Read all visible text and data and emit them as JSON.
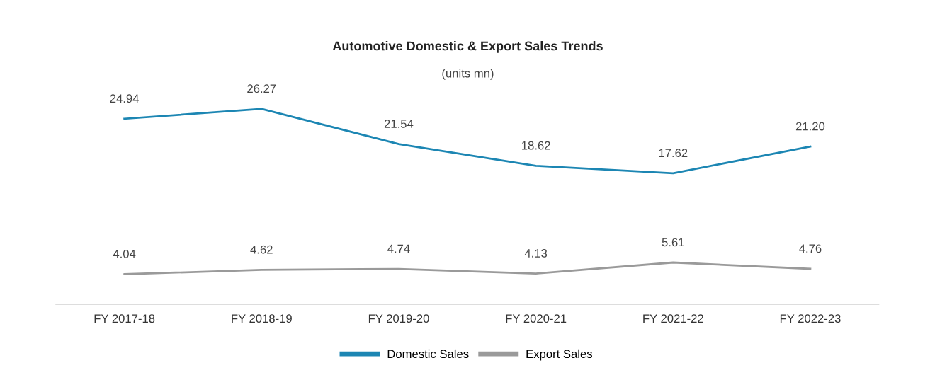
{
  "chart_data": {
    "type": "line",
    "title": "Automotive Domestic & Export Sales Trends",
    "subtitle": "(units mn)",
    "categories": [
      "FY 2017-18",
      "FY 2018-19",
      "FY 2019-20",
      "FY 2020-21",
      "FY 2021-22",
      "FY 2022-23"
    ],
    "series": [
      {
        "name": "Domestic Sales",
        "color": "#1c86b3",
        "values": [
          24.94,
          26.27,
          21.54,
          18.62,
          17.62,
          21.2
        ],
        "value_labels": [
          "24.94",
          "26.27",
          "21.54",
          "18.62",
          "17.62",
          "21.20"
        ]
      },
      {
        "name": "Export Sales",
        "color": "#9a9a9a",
        "values": [
          4.04,
          4.62,
          4.74,
          4.13,
          5.61,
          4.76
        ],
        "value_labels": [
          "4.04",
          "4.62",
          "4.74",
          "4.13",
          "5.61",
          "4.76"
        ]
      }
    ],
    "tick_labels": "x",
    "legend": "bottom",
    "grid": false,
    "marker": "none",
    "line_style": "solid"
  }
}
